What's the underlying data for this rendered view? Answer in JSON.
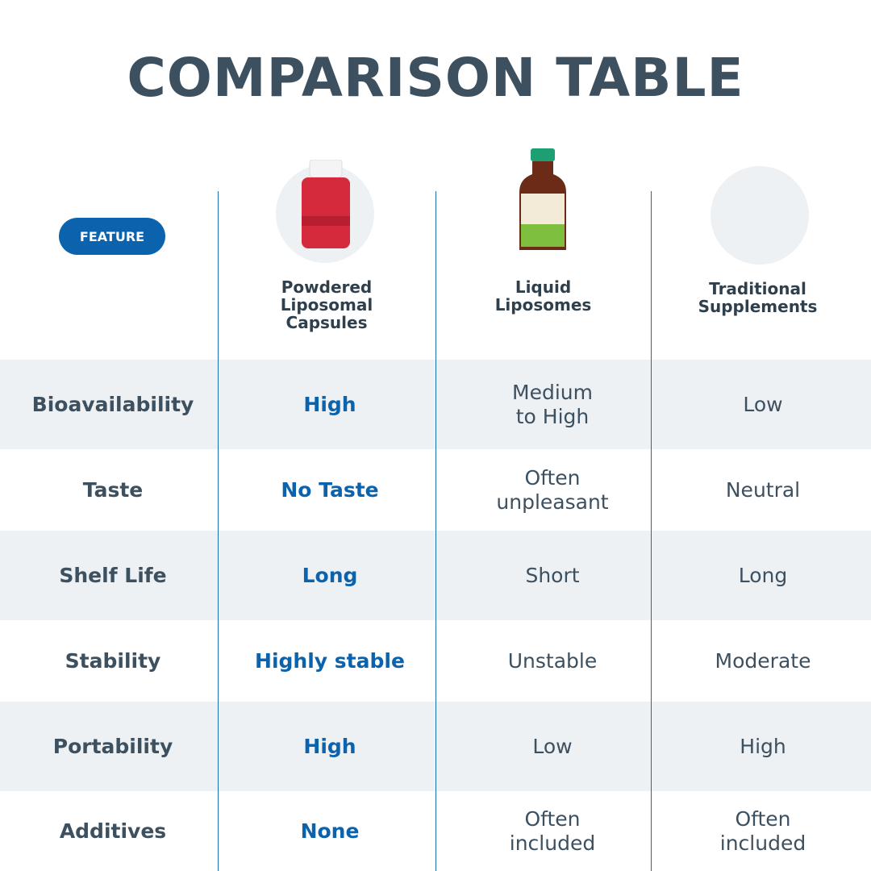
{
  "title": "COMPARISON TABLE",
  "header": {
    "feature": "FEATURE",
    "columns": [
      "Powdered\nLiposomal\nCapsules",
      "Liquid\nLiposomes",
      "Traditional\nSupplements"
    ]
  },
  "table": {
    "rows": [
      [
        "Bioavailability",
        "High",
        "Medium\nto High",
        "Low"
      ],
      [
        "Taste",
        "No Taste",
        "Often\nunpleasant",
        "Neutral"
      ],
      [
        "Shelf Life",
        "Long",
        "Short",
        "Long"
      ],
      [
        "Stability",
        "Highly stable",
        "Unstable",
        "Moderate"
      ],
      [
        "Portability",
        "High",
        "Low",
        "High"
      ],
      [
        "Additives",
        "None",
        "Often\nincluded",
        "Often\nincluded"
      ]
    ]
  }
}
